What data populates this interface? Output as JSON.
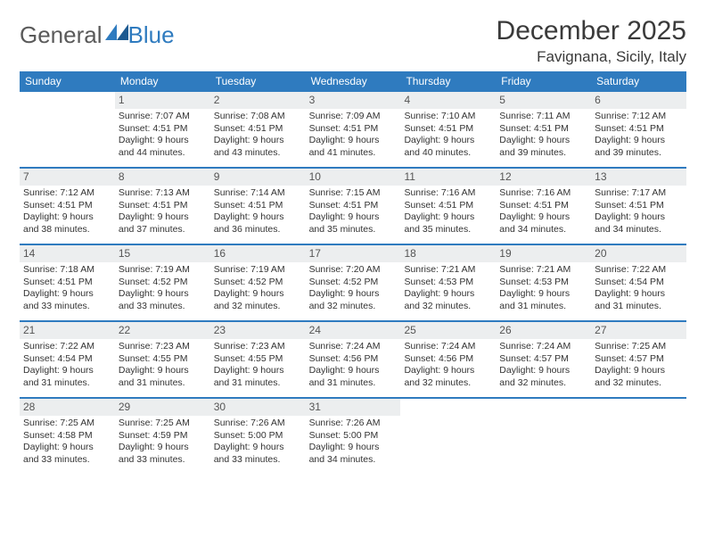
{
  "logo": {
    "text_general": "General",
    "text_blue": "Blue"
  },
  "title": "December 2025",
  "location": "Favignana, Sicily, Italy",
  "colors": {
    "header_bg": "#2f7bbf",
    "header_text": "#ffffff",
    "daynum_bg": "#eceeef",
    "daynum_text": "#555555",
    "body_text": "#333333",
    "rule": "#2f7bbf"
  },
  "weekdays": [
    "Sunday",
    "Monday",
    "Tuesday",
    "Wednesday",
    "Thursday",
    "Friday",
    "Saturday"
  ],
  "weeks": [
    [
      {
        "day": "",
        "lines": []
      },
      {
        "day": "1",
        "lines": [
          "Sunrise: 7:07 AM",
          "Sunset: 4:51 PM",
          "Daylight: 9 hours and 44 minutes."
        ]
      },
      {
        "day": "2",
        "lines": [
          "Sunrise: 7:08 AM",
          "Sunset: 4:51 PM",
          "Daylight: 9 hours and 43 minutes."
        ]
      },
      {
        "day": "3",
        "lines": [
          "Sunrise: 7:09 AM",
          "Sunset: 4:51 PM",
          "Daylight: 9 hours and 41 minutes."
        ]
      },
      {
        "day": "4",
        "lines": [
          "Sunrise: 7:10 AM",
          "Sunset: 4:51 PM",
          "Daylight: 9 hours and 40 minutes."
        ]
      },
      {
        "day": "5",
        "lines": [
          "Sunrise: 7:11 AM",
          "Sunset: 4:51 PM",
          "Daylight: 9 hours and 39 minutes."
        ]
      },
      {
        "day": "6",
        "lines": [
          "Sunrise: 7:12 AM",
          "Sunset: 4:51 PM",
          "Daylight: 9 hours and 39 minutes."
        ]
      }
    ],
    [
      {
        "day": "7",
        "lines": [
          "Sunrise: 7:12 AM",
          "Sunset: 4:51 PM",
          "Daylight: 9 hours and 38 minutes."
        ]
      },
      {
        "day": "8",
        "lines": [
          "Sunrise: 7:13 AM",
          "Sunset: 4:51 PM",
          "Daylight: 9 hours and 37 minutes."
        ]
      },
      {
        "day": "9",
        "lines": [
          "Sunrise: 7:14 AM",
          "Sunset: 4:51 PM",
          "Daylight: 9 hours and 36 minutes."
        ]
      },
      {
        "day": "10",
        "lines": [
          "Sunrise: 7:15 AM",
          "Sunset: 4:51 PM",
          "Daylight: 9 hours and 35 minutes."
        ]
      },
      {
        "day": "11",
        "lines": [
          "Sunrise: 7:16 AM",
          "Sunset: 4:51 PM",
          "Daylight: 9 hours and 35 minutes."
        ]
      },
      {
        "day": "12",
        "lines": [
          "Sunrise: 7:16 AM",
          "Sunset: 4:51 PM",
          "Daylight: 9 hours and 34 minutes."
        ]
      },
      {
        "day": "13",
        "lines": [
          "Sunrise: 7:17 AM",
          "Sunset: 4:51 PM",
          "Daylight: 9 hours and 34 minutes."
        ]
      }
    ],
    [
      {
        "day": "14",
        "lines": [
          "Sunrise: 7:18 AM",
          "Sunset: 4:51 PM",
          "Daylight: 9 hours and 33 minutes."
        ]
      },
      {
        "day": "15",
        "lines": [
          "Sunrise: 7:19 AM",
          "Sunset: 4:52 PM",
          "Daylight: 9 hours and 33 minutes."
        ]
      },
      {
        "day": "16",
        "lines": [
          "Sunrise: 7:19 AM",
          "Sunset: 4:52 PM",
          "Daylight: 9 hours and 32 minutes."
        ]
      },
      {
        "day": "17",
        "lines": [
          "Sunrise: 7:20 AM",
          "Sunset: 4:52 PM",
          "Daylight: 9 hours and 32 minutes."
        ]
      },
      {
        "day": "18",
        "lines": [
          "Sunrise: 7:21 AM",
          "Sunset: 4:53 PM",
          "Daylight: 9 hours and 32 minutes."
        ]
      },
      {
        "day": "19",
        "lines": [
          "Sunrise: 7:21 AM",
          "Sunset: 4:53 PM",
          "Daylight: 9 hours and 31 minutes."
        ]
      },
      {
        "day": "20",
        "lines": [
          "Sunrise: 7:22 AM",
          "Sunset: 4:54 PM",
          "Daylight: 9 hours and 31 minutes."
        ]
      }
    ],
    [
      {
        "day": "21",
        "lines": [
          "Sunrise: 7:22 AM",
          "Sunset: 4:54 PM",
          "Daylight: 9 hours and 31 minutes."
        ]
      },
      {
        "day": "22",
        "lines": [
          "Sunrise: 7:23 AM",
          "Sunset: 4:55 PM",
          "Daylight: 9 hours and 31 minutes."
        ]
      },
      {
        "day": "23",
        "lines": [
          "Sunrise: 7:23 AM",
          "Sunset: 4:55 PM",
          "Daylight: 9 hours and 31 minutes."
        ]
      },
      {
        "day": "24",
        "lines": [
          "Sunrise: 7:24 AM",
          "Sunset: 4:56 PM",
          "Daylight: 9 hours and 31 minutes."
        ]
      },
      {
        "day": "25",
        "lines": [
          "Sunrise: 7:24 AM",
          "Sunset: 4:56 PM",
          "Daylight: 9 hours and 32 minutes."
        ]
      },
      {
        "day": "26",
        "lines": [
          "Sunrise: 7:24 AM",
          "Sunset: 4:57 PM",
          "Daylight: 9 hours and 32 minutes."
        ]
      },
      {
        "day": "27",
        "lines": [
          "Sunrise: 7:25 AM",
          "Sunset: 4:57 PM",
          "Daylight: 9 hours and 32 minutes."
        ]
      }
    ],
    [
      {
        "day": "28",
        "lines": [
          "Sunrise: 7:25 AM",
          "Sunset: 4:58 PM",
          "Daylight: 9 hours and 33 minutes."
        ]
      },
      {
        "day": "29",
        "lines": [
          "Sunrise: 7:25 AM",
          "Sunset: 4:59 PM",
          "Daylight: 9 hours and 33 minutes."
        ]
      },
      {
        "day": "30",
        "lines": [
          "Sunrise: 7:26 AM",
          "Sunset: 5:00 PM",
          "Daylight: 9 hours and 33 minutes."
        ]
      },
      {
        "day": "31",
        "lines": [
          "Sunrise: 7:26 AM",
          "Sunset: 5:00 PM",
          "Daylight: 9 hours and 34 minutes."
        ]
      },
      {
        "day": "",
        "lines": []
      },
      {
        "day": "",
        "lines": []
      },
      {
        "day": "",
        "lines": []
      }
    ]
  ]
}
